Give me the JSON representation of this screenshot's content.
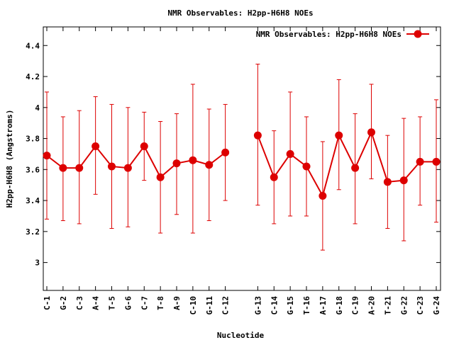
{
  "chart_data": {
    "type": "line",
    "title": "NMR Observables: H2pp-H6H8 NOEs",
    "xlabel": "Nucleotide",
    "ylabel": "H2pp-H6H8 (Angstroms)",
    "ylim": [
      2.82,
      4.52
    ],
    "yticks": [
      "3",
      "3.2",
      "3.4",
      "3.6",
      "3.8",
      "4",
      "4.2",
      "4.4"
    ],
    "grid": false,
    "legend": {
      "placement": "top-right"
    },
    "categories": [
      "C-1",
      "G-2",
      "C-3",
      "A-4",
      "T-5",
      "G-6",
      "C-7",
      "T-8",
      "A-9",
      "C-10",
      "G-11",
      "C-12",
      "G-13",
      "C-14",
      "G-15",
      "T-16",
      "A-17",
      "G-18",
      "C-19",
      "A-20",
      "T-21",
      "G-22",
      "C-23",
      "G-24"
    ],
    "gap_after": "C-12",
    "series": [
      {
        "name": "NMR Observables: H2pp-H6H8 NOEs",
        "color": "#dd0000",
        "segments": [
          [
            "C-1",
            "C-12"
          ],
          [
            "G-13",
            "G-24"
          ]
        ],
        "values": [
          3.69,
          3.61,
          3.61,
          3.75,
          3.62,
          3.61,
          3.75,
          3.55,
          3.64,
          3.66,
          3.63,
          3.71,
          3.82,
          3.55,
          3.7,
          3.62,
          3.43,
          3.82,
          3.61,
          3.84,
          3.52,
          3.53,
          3.65,
          3.65
        ],
        "upper": [
          4.1,
          3.94,
          3.98,
          4.07,
          4.02,
          4.0,
          3.97,
          3.91,
          3.96,
          4.15,
          3.99,
          4.02,
          4.28,
          3.85,
          4.1,
          3.94,
          3.78,
          4.18,
          3.96,
          4.15,
          3.82,
          3.93,
          3.94,
          4.05
        ],
        "lower": [
          3.28,
          3.27,
          3.25,
          3.44,
          3.22,
          3.23,
          3.53,
          3.19,
          3.31,
          3.19,
          3.27,
          3.4,
          3.37,
          3.25,
          3.3,
          3.3,
          3.08,
          3.47,
          3.25,
          3.54,
          3.22,
          3.14,
          3.37,
          3.26
        ]
      }
    ]
  }
}
